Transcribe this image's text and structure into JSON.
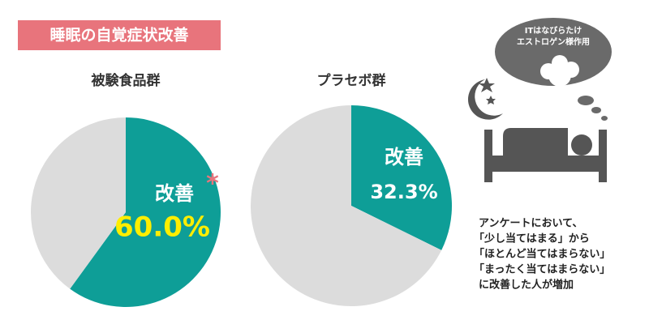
{
  "header": {
    "title": "睡眠の自覚症状改善"
  },
  "chart_data": [
    {
      "type": "pie",
      "title": "被験食品群",
      "categories": [
        "改善",
        null
      ],
      "values": [
        60.0,
        40.0
      ],
      "value_labels": [
        "60.0%",
        null
      ],
      "colors": [
        "#0e9e97",
        "#dcdcdc"
      ],
      "annotation": "*"
    },
    {
      "type": "pie",
      "title": "プラセボ群",
      "categories": [
        "改善",
        null
      ],
      "values": [
        32.3,
        67.7
      ],
      "value_labels": [
        "32.3%",
        null
      ],
      "colors": [
        "#0e9e97",
        "#dcdcdc"
      ]
    }
  ],
  "illustration": {
    "cloud_lines": [
      "ITはなびらたけ",
      "エストロゲン様作用"
    ]
  },
  "note": {
    "lines": [
      "アンケートにおいて、",
      "「少し当てはまる」から",
      "「ほとんど当てはまらない」",
      "「まったく当てはまらない」",
      "に改善した人が増加"
    ]
  }
}
